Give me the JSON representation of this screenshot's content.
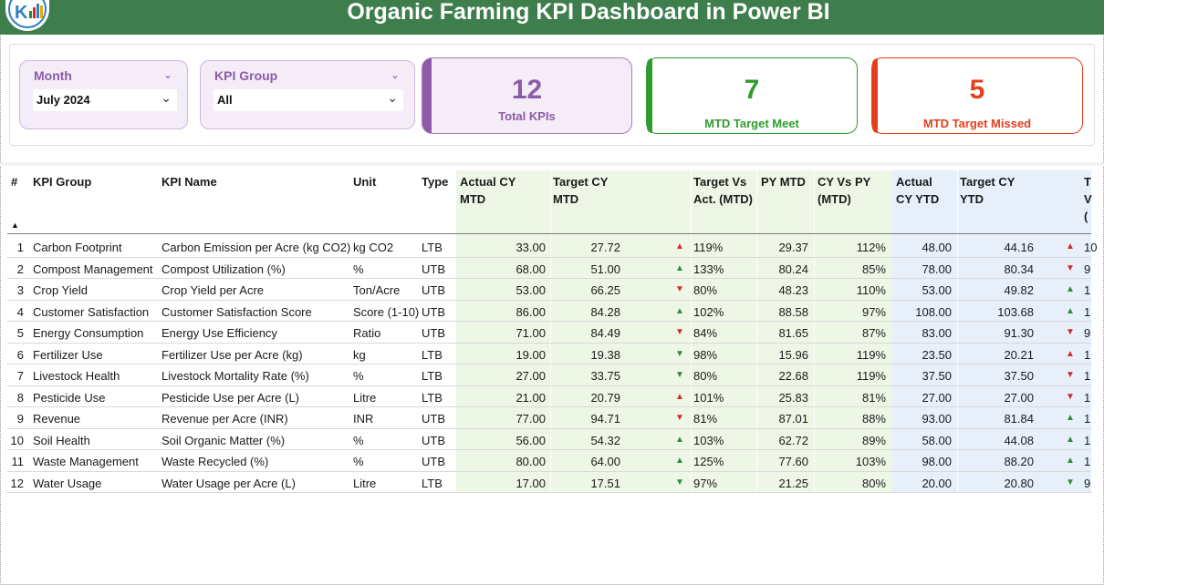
{
  "header": {
    "title": "Organic Farming KPI Dashboard in Power BI"
  },
  "colors": {
    "title_bar": "#3e7e4c",
    "purple": "#8e5ba8",
    "green": "#2e9c2e",
    "red": "#e2401c",
    "green_band": "#eef7e6",
    "blue_band": "#e6effa"
  },
  "slicers": {
    "month": {
      "label": "Month",
      "value": "July 2024"
    },
    "kpi_group": {
      "label": "KPI Group",
      "value": "All"
    }
  },
  "cards": {
    "total": {
      "value": "12",
      "label": "Total KPIs"
    },
    "meet": {
      "value": "7",
      "label": "MTD Target Meet"
    },
    "missed": {
      "value": "5",
      "label": "MTD Target Missed"
    }
  },
  "table": {
    "headers": {
      "num": "#",
      "group": "KPI Group",
      "name": "KPI Name",
      "unit": "Unit",
      "type": "Type",
      "actual_mtd": "Actual CY MTD",
      "target_mtd": "Target CY MTD",
      "tva_mtd": "Target Vs Act. (MTD)",
      "py_mtd": "PY MTD",
      "cyvpy_mtd": "CY Vs PY (MTD)",
      "actual_ytd": "Actual CY YTD",
      "target_ytd": "Target CY YTD",
      "tva_ytd": "T V ("
    },
    "rows": [
      {
        "n": "1",
        "group": "Carbon Footprint",
        "name": "Carbon Emission per Acre (kg CO2)",
        "unit": "kg CO2",
        "type": "LTB",
        "actual_mtd": "33.00",
        "target_mtd": "27.72",
        "arrow_mtd": "up-red",
        "tva_mtd": "119%",
        "py_mtd": "29.37",
        "cyvpy": "112%",
        "actual_ytd": "48.00",
        "target_ytd": "44.16",
        "arrow_ytd": "up-red",
        "tva_ytd": "10"
      },
      {
        "n": "2",
        "group": "Compost Management",
        "name": "Compost Utilization (%)",
        "unit": "%",
        "type": "UTB",
        "actual_mtd": "68.00",
        "target_mtd": "51.00",
        "arrow_mtd": "up-green",
        "tva_mtd": "133%",
        "py_mtd": "80.24",
        "cyvpy": "85%",
        "actual_ytd": "78.00",
        "target_ytd": "80.34",
        "arrow_ytd": "down-red",
        "tva_ytd": "9"
      },
      {
        "n": "3",
        "group": "Crop Yield",
        "name": "Crop Yield per Acre",
        "unit": "Ton/Acre",
        "type": "UTB",
        "actual_mtd": "53.00",
        "target_mtd": "66.25",
        "arrow_mtd": "down-red",
        "tva_mtd": "80%",
        "py_mtd": "48.23",
        "cyvpy": "110%",
        "actual_ytd": "53.00",
        "target_ytd": "49.82",
        "arrow_ytd": "up-green",
        "tva_ytd": "1"
      },
      {
        "n": "4",
        "group": "Customer Satisfaction",
        "name": "Customer Satisfaction Score",
        "unit": "Score (1-10)",
        "type": "UTB",
        "actual_mtd": "86.00",
        "target_mtd": "84.28",
        "arrow_mtd": "up-green",
        "tva_mtd": "102%",
        "py_mtd": "88.58",
        "cyvpy": "97%",
        "actual_ytd": "108.00",
        "target_ytd": "103.68",
        "arrow_ytd": "up-green",
        "tva_ytd": "1"
      },
      {
        "n": "5",
        "group": "Energy Consumption",
        "name": "Energy Use Efficiency",
        "unit": "Ratio",
        "type": "UTB",
        "actual_mtd": "71.00",
        "target_mtd": "84.49",
        "arrow_mtd": "down-red",
        "tva_mtd": "84%",
        "py_mtd": "81.65",
        "cyvpy": "87%",
        "actual_ytd": "83.00",
        "target_ytd": "91.30",
        "arrow_ytd": "down-red",
        "tva_ytd": "9"
      },
      {
        "n": "6",
        "group": "Fertilizer Use",
        "name": "Fertilizer Use per Acre (kg)",
        "unit": "kg",
        "type": "LTB",
        "actual_mtd": "19.00",
        "target_mtd": "19.38",
        "arrow_mtd": "down-green",
        "tva_mtd": "98%",
        "py_mtd": "15.96",
        "cyvpy": "119%",
        "actual_ytd": "23.50",
        "target_ytd": "20.21",
        "arrow_ytd": "up-red",
        "tva_ytd": "1"
      },
      {
        "n": "7",
        "group": "Livestock Health",
        "name": "Livestock Mortality Rate (%)",
        "unit": "%",
        "type": "LTB",
        "actual_mtd": "27.00",
        "target_mtd": "33.75",
        "arrow_mtd": "down-green",
        "tva_mtd": "80%",
        "py_mtd": "22.68",
        "cyvpy": "119%",
        "actual_ytd": "37.50",
        "target_ytd": "37.50",
        "arrow_ytd": "down-red",
        "tva_ytd": "1"
      },
      {
        "n": "8",
        "group": "Pesticide Use",
        "name": "Pesticide Use per Acre (L)",
        "unit": "Litre",
        "type": "LTB",
        "actual_mtd": "21.00",
        "target_mtd": "20.79",
        "arrow_mtd": "up-red",
        "tva_mtd": "101%",
        "py_mtd": "25.83",
        "cyvpy": "81%",
        "actual_ytd": "27.00",
        "target_ytd": "27.00",
        "arrow_ytd": "down-red",
        "tva_ytd": "1"
      },
      {
        "n": "9",
        "group": "Revenue",
        "name": "Revenue per Acre (INR)",
        "unit": "INR",
        "type": "UTB",
        "actual_mtd": "77.00",
        "target_mtd": "94.71",
        "arrow_mtd": "down-red",
        "tva_mtd": "81%",
        "py_mtd": "87.01",
        "cyvpy": "88%",
        "actual_ytd": "93.00",
        "target_ytd": "81.84",
        "arrow_ytd": "up-green",
        "tva_ytd": "1"
      },
      {
        "n": "10",
        "group": "Soil Health",
        "name": "Soil Organic Matter (%)",
        "unit": "%",
        "type": "UTB",
        "actual_mtd": "56.00",
        "target_mtd": "54.32",
        "arrow_mtd": "up-green",
        "tva_mtd": "103%",
        "py_mtd": "62.72",
        "cyvpy": "89%",
        "actual_ytd": "58.00",
        "target_ytd": "44.08",
        "arrow_ytd": "up-green",
        "tva_ytd": "1"
      },
      {
        "n": "11",
        "group": "Waste Management",
        "name": "Waste Recycled (%)",
        "unit": "%",
        "type": "UTB",
        "actual_mtd": "80.00",
        "target_mtd": "64.00",
        "arrow_mtd": "up-green",
        "tva_mtd": "125%",
        "py_mtd": "77.60",
        "cyvpy": "103%",
        "actual_ytd": "98.00",
        "target_ytd": "88.20",
        "arrow_ytd": "up-green",
        "tva_ytd": "1"
      },
      {
        "n": "12",
        "group": "Water Usage",
        "name": "Water Usage per Acre (L)",
        "unit": "Litre",
        "type": "LTB",
        "actual_mtd": "17.00",
        "target_mtd": "17.51",
        "arrow_mtd": "down-green",
        "tva_mtd": "97%",
        "py_mtd": "21.25",
        "cyvpy": "80%",
        "actual_ytd": "20.00",
        "target_ytd": "20.80",
        "arrow_ytd": "down-green",
        "tva_ytd": "9"
      }
    ]
  }
}
